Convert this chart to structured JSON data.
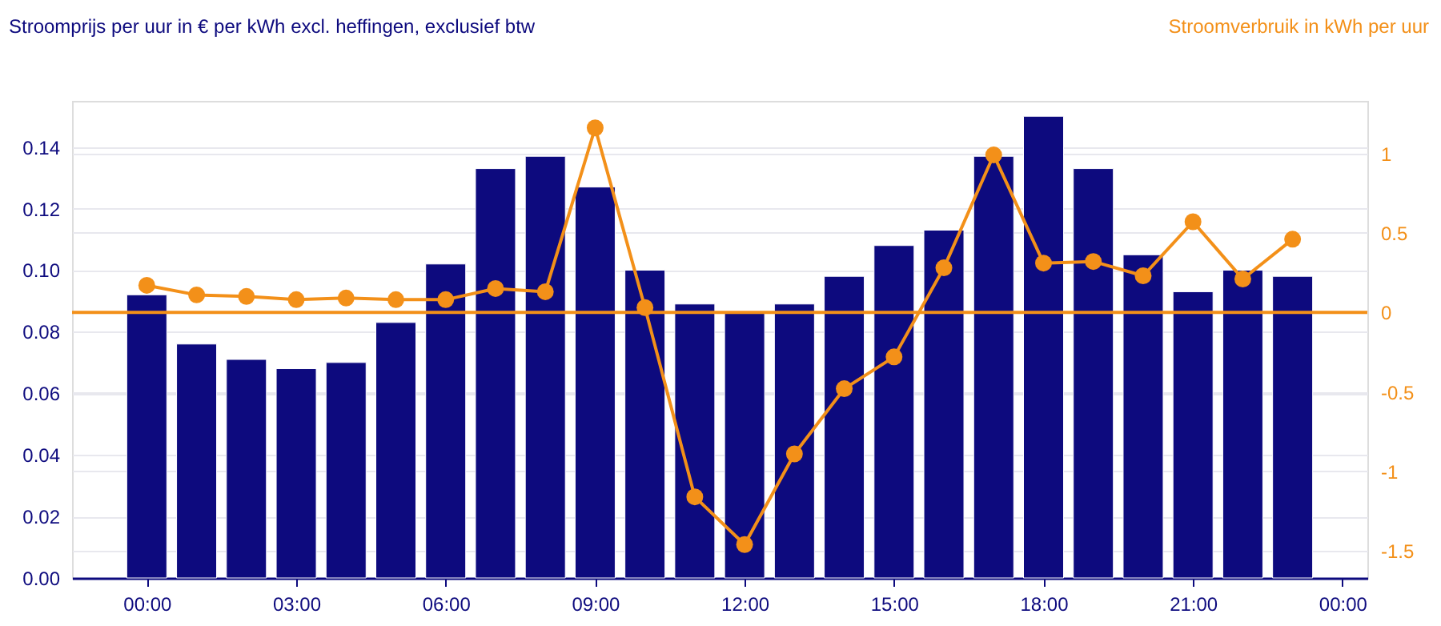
{
  "chart_data": {
    "type": "bar",
    "ylabel": "Stroomprijs per uur in € per kWh excl. heffingen, exclusief btw",
    "y2label": "Stroomverbruik in kWh per uur",
    "x": [
      0,
      1,
      2,
      3,
      4,
      5,
      6,
      7,
      8,
      9,
      10,
      11,
      12,
      13,
      14,
      15,
      16,
      17,
      18,
      19,
      20,
      21,
      22,
      23
    ],
    "xlim": [
      -1.5,
      24.5
    ],
    "xticks": [
      {
        "value": 0,
        "label": "00:00"
      },
      {
        "value": 3,
        "label": "03:00"
      },
      {
        "value": 6,
        "label": "06:00"
      },
      {
        "value": 9,
        "label": "09:00"
      },
      {
        "value": 12,
        "label": "12:00"
      },
      {
        "value": 15,
        "label": "15:00"
      },
      {
        "value": 18,
        "label": "18:00"
      },
      {
        "value": 21,
        "label": "21:00"
      },
      {
        "value": 24,
        "label": "00:00"
      }
    ],
    "ylim": [
      0,
      0.155
    ],
    "yticks": [
      {
        "value": 0,
        "label": "0.00"
      },
      {
        "value": 0.02,
        "label": "0.02"
      },
      {
        "value": 0.04,
        "label": "0.04"
      },
      {
        "value": 0.06,
        "label": "0.06"
      },
      {
        "value": 0.08,
        "label": "0.08"
      },
      {
        "value": 0.1,
        "label": "0.10"
      },
      {
        "value": 0.12,
        "label": "0.12"
      },
      {
        "value": 0.14,
        "label": "0.14"
      }
    ],
    "y2lim": [
      -1.67,
      1.33
    ],
    "y2ticks": [
      -1.5,
      -1,
      -0.5,
      0,
      0.5,
      1
    ],
    "series": [
      {
        "color": "#0d0a7e",
        "values": [
          0.092,
          0.076,
          0.071,
          0.068,
          0.07,
          0.083,
          0.102,
          0.133,
          0.137,
          0.127,
          0.1,
          0.089,
          0.086,
          0.089,
          0.098,
          0.108,
          0.113,
          0.137,
          0.15,
          0.133,
          0.105,
          0.093,
          0.1,
          0.098
        ]
      },
      {
        "type": "line",
        "axis": "y2",
        "color": "#f39019",
        "marker": "circle",
        "values": [
          0.17,
          0.11,
          0.1,
          0.08,
          0.09,
          0.08,
          0.08,
          0.15,
          0.13,
          1.16,
          0.03,
          -1.16,
          -1.46,
          -0.89,
          -0.48,
          -0.28,
          0.28,
          0.99,
          0.31,
          0.32,
          0.23,
          0.57,
          0.21,
          0.46
        ]
      }
    ],
    "ref_lines": [
      {
        "axis": "y2",
        "value": 0,
        "color": "#f39019"
      }
    ],
    "grid": "y"
  }
}
